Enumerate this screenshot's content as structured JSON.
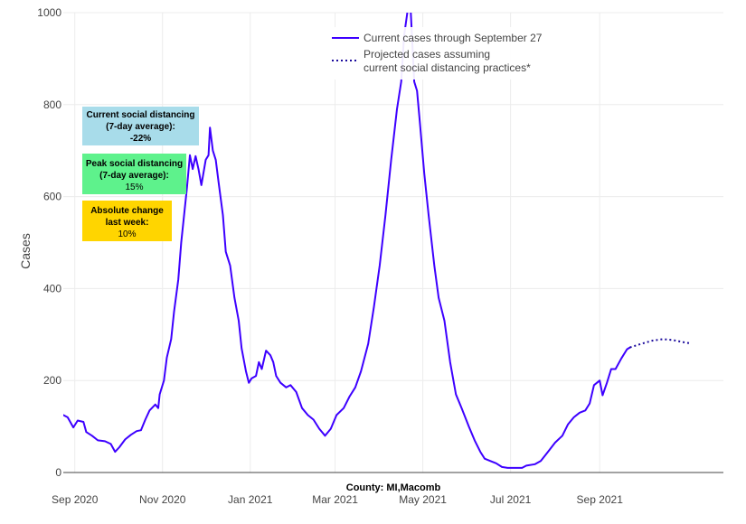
{
  "chart_data": {
    "type": "line",
    "title": "",
    "xlabel": "County: MI,Macomb",
    "ylabel": "Cases",
    "ylim": [
      0,
      1000
    ],
    "xlim": [
      "2020-08-24",
      "2021-11-26"
    ],
    "y_ticks": [
      "0",
      "200",
      "400",
      "600",
      "800",
      "1000"
    ],
    "x_ticks": [
      {
        "date": "2020-09-01",
        "label": "Sep 2020"
      },
      {
        "date": "2020-11-01",
        "label": "Nov 2020"
      },
      {
        "date": "2021-01-01",
        "label": "Jan 2021"
      },
      {
        "date": "2021-03-01",
        "label": "Mar 2021"
      },
      {
        "date": "2021-05-01",
        "label": "May 2021"
      },
      {
        "date": "2021-07-01",
        "label": "Jul 2021"
      },
      {
        "date": "2021-09-01",
        "label": "Sep 2021"
      }
    ],
    "grid": true,
    "legend_position": "top-center",
    "series": [
      {
        "name": "Current cases through September 27",
        "color": "#3d00ff",
        "style": "solid",
        "points": [
          [
            "2020-08-24",
            125
          ],
          [
            "2020-08-27",
            120
          ],
          [
            "2020-08-31",
            98
          ],
          [
            "2020-09-03",
            113
          ],
          [
            "2020-09-07",
            110
          ],
          [
            "2020-09-09",
            88
          ],
          [
            "2020-09-13",
            80
          ],
          [
            "2020-09-17",
            70
          ],
          [
            "2020-09-22",
            68
          ],
          [
            "2020-09-26",
            62
          ],
          [
            "2020-09-29",
            45
          ],
          [
            "2020-10-02",
            55
          ],
          [
            "2020-10-06",
            72
          ],
          [
            "2020-10-10",
            82
          ],
          [
            "2020-10-14",
            90
          ],
          [
            "2020-10-17",
            92
          ],
          [
            "2020-10-20",
            115
          ],
          [
            "2020-10-23",
            135
          ],
          [
            "2020-10-27",
            148
          ],
          [
            "2020-10-29",
            140
          ],
          [
            "2020-10-30",
            170
          ],
          [
            "2020-11-02",
            200
          ],
          [
            "2020-11-04",
            250
          ],
          [
            "2020-11-07",
            290
          ],
          [
            "2020-11-09",
            350
          ],
          [
            "2020-11-12",
            420
          ],
          [
            "2020-11-14",
            500
          ],
          [
            "2020-11-16",
            560
          ],
          [
            "2020-11-18",
            620
          ],
          [
            "2020-11-20",
            690
          ],
          [
            "2020-11-22",
            660
          ],
          [
            "2020-11-24",
            688
          ],
          [
            "2020-11-26",
            660
          ],
          [
            "2020-11-28",
            625
          ],
          [
            "2020-12-01",
            680
          ],
          [
            "2020-12-03",
            690
          ],
          [
            "2020-12-04",
            750
          ],
          [
            "2020-12-06",
            700
          ],
          [
            "2020-12-08",
            680
          ],
          [
            "2020-12-10",
            630
          ],
          [
            "2020-12-13",
            560
          ],
          [
            "2020-12-15",
            480
          ],
          [
            "2020-12-18",
            450
          ],
          [
            "2020-12-21",
            380
          ],
          [
            "2020-12-24",
            330
          ],
          [
            "2020-12-26",
            270
          ],
          [
            "2020-12-29",
            220
          ],
          [
            "2020-12-31",
            195
          ],
          [
            "2021-01-02",
            205
          ],
          [
            "2021-01-05",
            210
          ],
          [
            "2021-01-07",
            240
          ],
          [
            "2021-01-09",
            225
          ],
          [
            "2021-01-12",
            265
          ],
          [
            "2021-01-15",
            255
          ],
          [
            "2021-01-17",
            240
          ],
          [
            "2021-01-19",
            210
          ],
          [
            "2021-01-22",
            195
          ],
          [
            "2021-01-26",
            185
          ],
          [
            "2021-01-29",
            190
          ],
          [
            "2021-02-02",
            175
          ],
          [
            "2021-02-06",
            140
          ],
          [
            "2021-02-10",
            125
          ],
          [
            "2021-02-14",
            115
          ],
          [
            "2021-02-18",
            95
          ],
          [
            "2021-02-22",
            80
          ],
          [
            "2021-02-26",
            95
          ],
          [
            "2021-03-02",
            125
          ],
          [
            "2021-03-07",
            140
          ],
          [
            "2021-03-11",
            165
          ],
          [
            "2021-03-15",
            185
          ],
          [
            "2021-03-19",
            220
          ],
          [
            "2021-03-24",
            280
          ],
          [
            "2021-03-28",
            360
          ],
          [
            "2021-04-01",
            450
          ],
          [
            "2021-04-05",
            560
          ],
          [
            "2021-04-09",
            680
          ],
          [
            "2021-04-13",
            790
          ],
          [
            "2021-04-16",
            850
          ],
          [
            "2021-04-18",
            950
          ],
          [
            "2021-04-22",
            1040
          ],
          [
            "2021-04-25",
            850
          ],
          [
            "2021-04-27",
            830
          ],
          [
            "2021-04-29",
            760
          ],
          [
            "2021-05-02",
            650
          ],
          [
            "2021-05-05",
            560
          ],
          [
            "2021-05-09",
            450
          ],
          [
            "2021-05-12",
            380
          ],
          [
            "2021-05-16",
            330
          ],
          [
            "2021-05-20",
            240
          ],
          [
            "2021-05-24",
            170
          ],
          [
            "2021-05-28",
            140
          ],
          [
            "2021-06-02",
            100
          ],
          [
            "2021-06-06",
            70
          ],
          [
            "2021-06-10",
            45
          ],
          [
            "2021-06-13",
            30
          ],
          [
            "2021-06-17",
            25
          ],
          [
            "2021-06-21",
            20
          ],
          [
            "2021-06-25",
            12
          ],
          [
            "2021-06-29",
            10
          ],
          [
            "2021-07-04",
            10
          ],
          [
            "2021-07-09",
            10
          ],
          [
            "2021-07-12",
            15
          ],
          [
            "2021-07-18",
            18
          ],
          [
            "2021-07-22",
            25
          ],
          [
            "2021-07-27",
            45
          ],
          [
            "2021-08-01",
            65
          ],
          [
            "2021-08-06",
            80
          ],
          [
            "2021-08-10",
            105
          ],
          [
            "2021-08-14",
            120
          ],
          [
            "2021-08-18",
            130
          ],
          [
            "2021-08-22",
            135
          ],
          [
            "2021-08-25",
            150
          ],
          [
            "2021-08-28",
            190
          ],
          [
            "2021-09-01",
            200
          ],
          [
            "2021-09-03",
            168
          ],
          [
            "2021-09-06",
            195
          ],
          [
            "2021-09-09",
            225
          ],
          [
            "2021-09-12",
            225
          ],
          [
            "2021-09-16",
            248
          ],
          [
            "2021-09-20",
            268
          ],
          [
            "2021-09-22",
            272
          ]
        ]
      },
      {
        "name": "Projected cases assuming current social distancing practices*",
        "color": "#1a0a9c",
        "style": "dotted",
        "points": [
          [
            "2021-09-22",
            272
          ],
          [
            "2021-09-30",
            280
          ],
          [
            "2021-10-08",
            287
          ],
          [
            "2021-10-15",
            290
          ],
          [
            "2021-10-22",
            288
          ],
          [
            "2021-10-30",
            283
          ],
          [
            "2021-11-03",
            281
          ]
        ]
      }
    ]
  },
  "legend": {
    "current": "Current cases through September 27",
    "projected_line1": "Projected cases assuming",
    "projected_line2": "current social distancing practices*"
  },
  "info_boxes": [
    {
      "line1": "Current social distancing",
      "line2": "(7-day average):",
      "value": "-22%",
      "color": "#a8dcea"
    },
    {
      "line1": "Peak social distancing",
      "line2": "(7-day average):",
      "value": "15%",
      "color": "#5ef28c"
    },
    {
      "line1": "Absolute change",
      "line2": "last week:",
      "value": "10%",
      "color": "#ffd500"
    }
  ]
}
